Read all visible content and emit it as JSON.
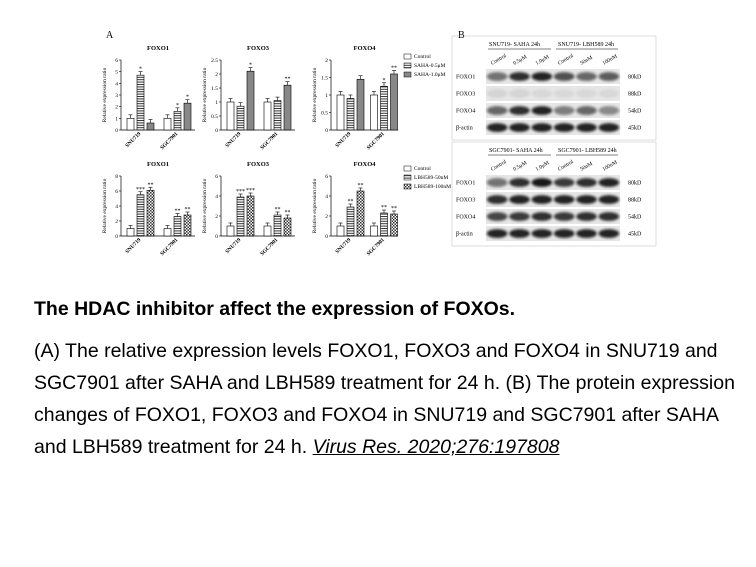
{
  "panel_a_label": "A",
  "panel_b_label": "B",
  "chart_data": [
    {
      "type": "bar",
      "title": "FOXO1",
      "ylabel": "Relative expression ratio",
      "ylim": [
        0,
        6
      ],
      "yticks": [
        0,
        1,
        2,
        3,
        4,
        5,
        6
      ],
      "categories": [
        "SNU719",
        "SGC7901"
      ],
      "series": [
        {
          "name": "Control",
          "values": [
            1,
            1
          ]
        },
        {
          "name": "SAHA-0.5μM",
          "values": [
            4.7,
            1.6
          ]
        },
        {
          "name": "SAHA-1.0μM",
          "values": [
            0.6,
            2.3
          ]
        }
      ],
      "sig": [
        [
          "",
          "*",
          ""
        ],
        [
          "",
          "*",
          "*"
        ]
      ]
    },
    {
      "type": "bar",
      "title": "FOXO3",
      "ylabel": "Relative expression ratio",
      "ylim": [
        0,
        2.5
      ],
      "yticks": [
        0,
        0.5,
        1,
        1.5,
        2,
        2.5
      ],
      "categories": [
        "SNU719",
        "SGC7901"
      ],
      "series": [
        {
          "name": "Control",
          "values": [
            1,
            1
          ]
        },
        {
          "name": "SAHA-0.5μM",
          "values": [
            0.85,
            1.05
          ]
        },
        {
          "name": "SAHA-1.0μM",
          "values": [
            2.1,
            1.6
          ]
        }
      ],
      "sig": [
        [
          "",
          "",
          "*"
        ],
        [
          "",
          "",
          "**"
        ]
      ]
    },
    {
      "type": "bar",
      "title": "FOXO4",
      "ylabel": "Relative expression ratio",
      "ylim": [
        0,
        2
      ],
      "yticks": [
        0,
        0.5,
        1,
        1.5,
        2
      ],
      "categories": [
        "SNU719",
        "SGC7901"
      ],
      "series": [
        {
          "name": "Control",
          "values": [
            1,
            1
          ]
        },
        {
          "name": "SAHA-0.5μM",
          "values": [
            0.9,
            1.25
          ]
        },
        {
          "name": "SAHA-1.0μM",
          "values": [
            1.45,
            1.6
          ]
        }
      ],
      "sig": [
        [
          "",
          "",
          ""
        ],
        [
          "",
          "*",
          "**"
        ]
      ]
    },
    {
      "type": "bar",
      "title": "FOXO1",
      "ylabel": "Relative expression ratio",
      "ylim": [
        0,
        8
      ],
      "yticks": [
        0,
        2,
        4,
        6,
        8
      ],
      "categories": [
        "SNU719",
        "SGC7901"
      ],
      "series": [
        {
          "name": "Control",
          "values": [
            1,
            1
          ]
        },
        {
          "name": "LBH589-50nM",
          "values": [
            5.5,
            2.6
          ]
        },
        {
          "name": "LBH589-100nM",
          "values": [
            6.1,
            2.8
          ]
        }
      ],
      "sig": [
        [
          "",
          "***",
          "**"
        ],
        [
          "",
          "**",
          "**"
        ]
      ]
    },
    {
      "type": "bar",
      "title": "FOXO3",
      "ylabel": "Relative expression ratio",
      "ylim": [
        0,
        6
      ],
      "yticks": [
        0,
        2,
        4,
        6
      ],
      "categories": [
        "SNU719",
        "SGC7901"
      ],
      "series": [
        {
          "name": "Control",
          "values": [
            1,
            1
          ]
        },
        {
          "name": "LBH589-50nM",
          "values": [
            3.9,
            2.1
          ]
        },
        {
          "name": "LBH589-100nM",
          "values": [
            4.0,
            1.8
          ]
        }
      ],
      "sig": [
        [
          "",
          "***",
          "***"
        ],
        [
          "",
          "**",
          "**"
        ]
      ]
    },
    {
      "type": "bar",
      "title": "FOXO4",
      "ylabel": "Relative expression ratio",
      "ylim": [
        0,
        6
      ],
      "yticks": [
        0,
        2,
        4,
        6
      ],
      "categories": [
        "SNU719",
        "SGC7901"
      ],
      "series": [
        {
          "name": "Control",
          "values": [
            1,
            1
          ]
        },
        {
          "name": "LBH589-50nM",
          "values": [
            2.9,
            2.3
          ]
        },
        {
          "name": "LBH589-100nM",
          "values": [
            4.5,
            2.2
          ]
        }
      ],
      "sig": [
        [
          "",
          "**",
          "**"
        ],
        [
          "",
          "**",
          "**"
        ]
      ]
    }
  ],
  "legend_a": [
    "Control",
    "SAHA-0.5μM",
    "SAHA-1.0μM"
  ],
  "legend_b": [
    "Control",
    "LBH589-50nM",
    "LBH589-100nM"
  ],
  "blots": [
    {
      "header_left": "SNU719- SAHA  24h",
      "header_right": "SNU719- LBH589 24h",
      "lanes": [
        "Control",
        "0.5μM",
        "1.0μM",
        "Control",
        "50nM",
        "100nM"
      ],
      "rows": [
        {
          "name": "FOXO1",
          "kd": "80kD"
        },
        {
          "name": "FOXO3",
          "kd": "88kD"
        },
        {
          "name": "FOXO4",
          "kd": "54kD"
        },
        {
          "name": "β-actin",
          "kd": "45kD"
        }
      ]
    },
    {
      "header_left": "SGC7901- SAHA  24h",
      "header_right": "SGC7901- LBH589 24h",
      "lanes": [
        "Control",
        "0.5μM",
        "1.0μM",
        "Control",
        "50nM",
        "100nM"
      ],
      "rows": [
        {
          "name": "FOXO1",
          "kd": "80kD"
        },
        {
          "name": "FOXO3",
          "kd": "88kD"
        },
        {
          "name": "FOXO4",
          "kd": "54kD"
        },
        {
          "name": "β-actin",
          "kd": "45kD"
        }
      ]
    }
  ],
  "caption": {
    "title": "The HDAC inhibitor affect the expression of FOXOs.",
    "body": "(A) The relative expression levels FOXO1, FOXO3 and FOXO4 in SNU719 and SGC7901 after SAHA and LBH589 treatment for 24 h. (B) The protein expression changes of FOXO1, FOXO3 and FOXO4 in SNU719 and SGC7901 after SAHA and LBH589 treatment for 24 h.",
    "citation": "Virus Res. 2020;276:197808"
  }
}
